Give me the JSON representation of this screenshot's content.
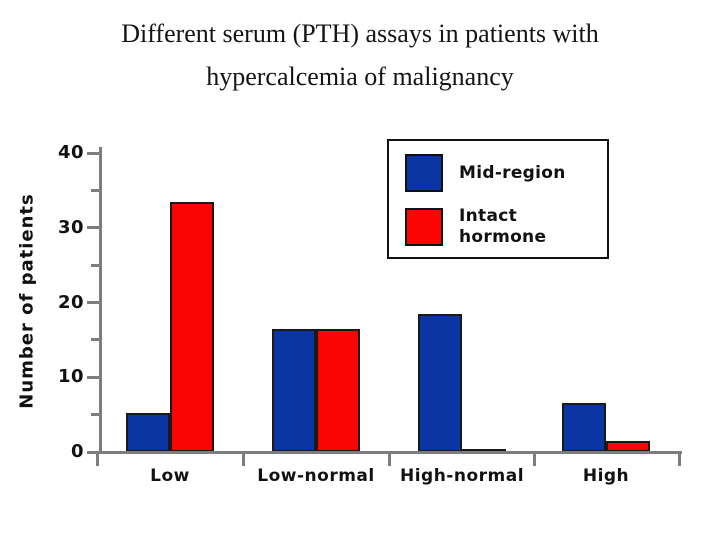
{
  "title": {
    "line1": "Different serum (PTH) assays in patients with",
    "line2": "hypercalcemia of malignancy"
  },
  "chart_data": {
    "type": "bar",
    "categories": [
      "Low",
      "Low-normal",
      "High-normal",
      "High"
    ],
    "series": [
      {
        "name": "Mid-region",
        "color": "#0b35a2",
        "values": [
          5.2,
          16.5,
          18.5,
          6.5
        ]
      },
      {
        "name": "Intact hormone",
        "color": "#fa0404",
        "values": [
          33.5,
          16.5,
          0.3,
          1.5
        ]
      }
    ],
    "title": "Different serum (PTH) assays in patients with hypercalcemia of malignancy",
    "xlabel": "",
    "ylabel": "Number of patients",
    "ylim": [
      0,
      40
    ],
    "yticks": [
      0,
      10,
      20,
      30,
      40
    ],
    "minor_yticks": [
      5,
      15,
      25,
      35
    ],
    "grid": false,
    "legend_position": "top-right",
    "axis_color": "#7d7d7d",
    "bar_outline_color": "#1a1a1a",
    "background_color": "#ffffff"
  }
}
